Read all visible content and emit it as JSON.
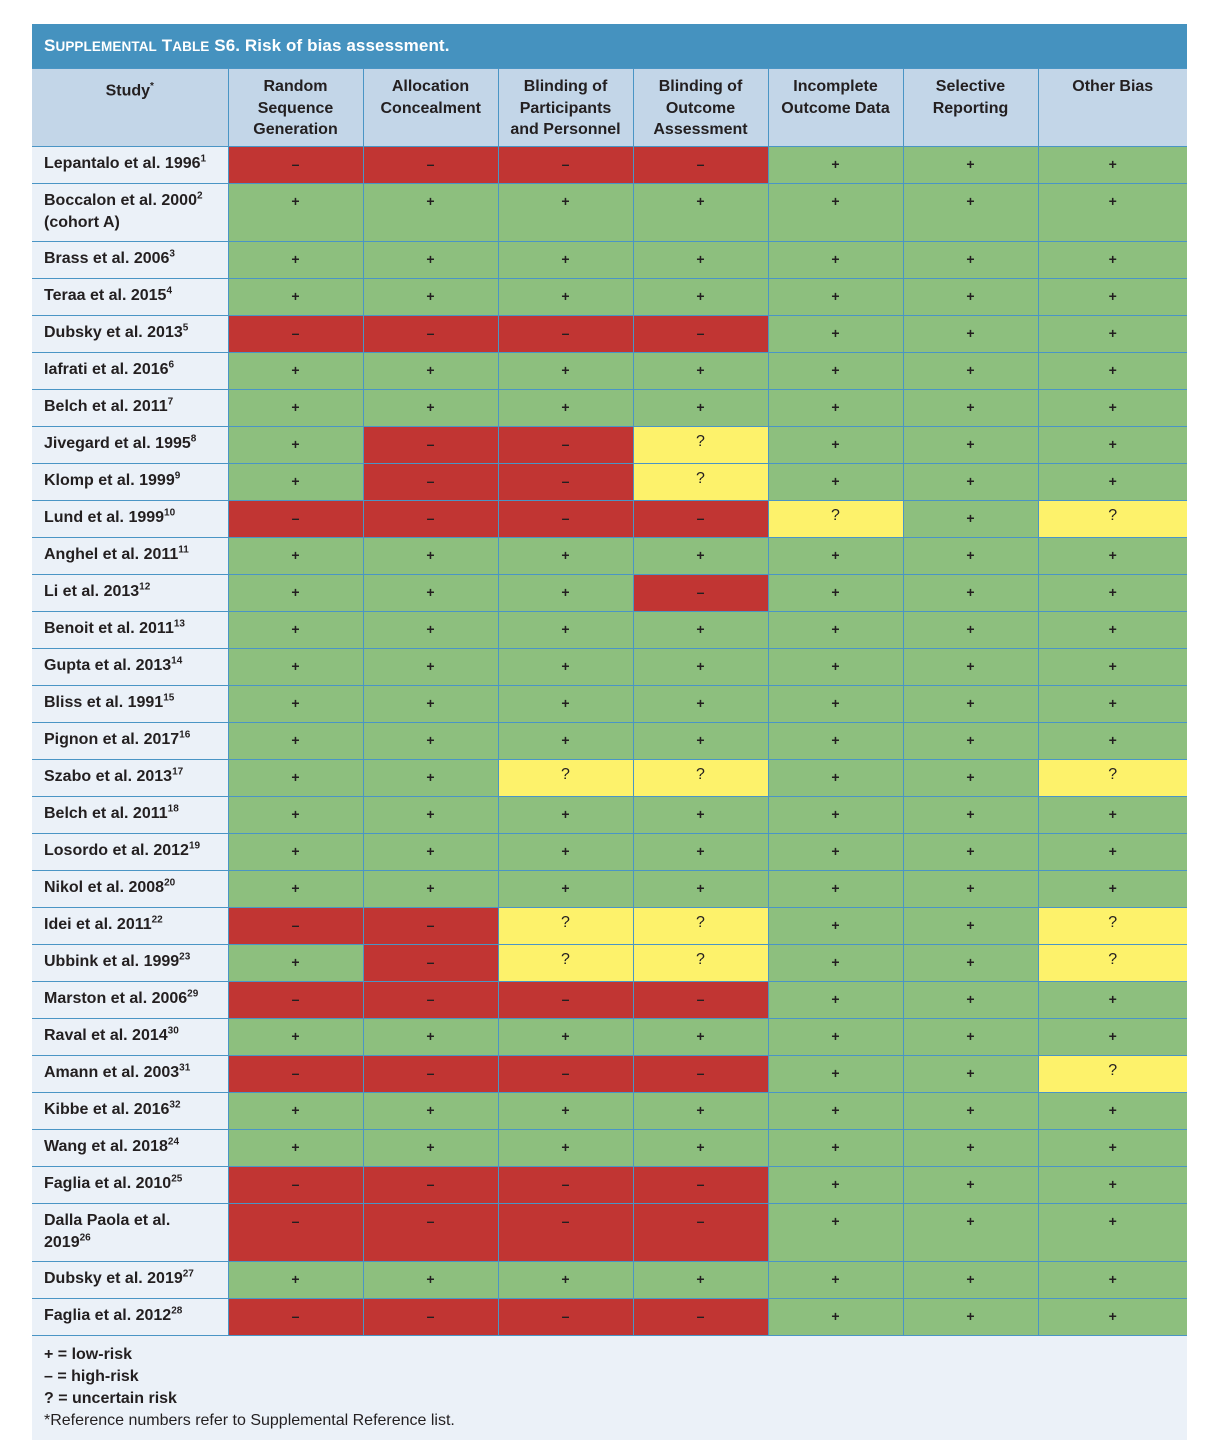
{
  "title": {
    "label_smallcaps": "Supplemental Table S6.",
    "text": "Risk of bias assessment."
  },
  "columns": [
    {
      "label": "Study",
      "sup": "*"
    },
    {
      "label": "Random Sequence Generation"
    },
    {
      "label": "Allocation Concealment"
    },
    {
      "label": "Blinding of Participants and Personnel"
    },
    {
      "label": "Blinding of Outcome Assessment"
    },
    {
      "label": "Incomplete Outcome Data"
    },
    {
      "label": "Selective Reporting"
    },
    {
      "label": "Other Bias"
    }
  ],
  "symbols": {
    "low": "+",
    "high": "–",
    "unc": "?"
  },
  "colors": {
    "low": "#8dbf7e",
    "high": "#c13533",
    "uncertain": "#fdf26b",
    "title_bar": "#4592bf",
    "header_bg": "#c3d6e8",
    "study_bg": "#ebf1f8",
    "grid": "#4a95c5"
  },
  "rows": [
    {
      "study": "Lepantalo et al. 1996",
      "ref": "1",
      "r": [
        "high",
        "high",
        "high",
        "high",
        "low",
        "low",
        "low"
      ]
    },
    {
      "study": "Boccalon et al. 2000",
      "ref": "2",
      "study2": "(cohort A)",
      "r": [
        "low",
        "low",
        "low",
        "low",
        "low",
        "low",
        "low"
      ]
    },
    {
      "study": "Brass et al. 2006",
      "ref": "3",
      "r": [
        "low",
        "low",
        "low",
        "low",
        "low",
        "low",
        "low"
      ]
    },
    {
      "study": "Teraa et al. 2015",
      "ref": "4",
      "r": [
        "low",
        "low",
        "low",
        "low",
        "low",
        "low",
        "low"
      ]
    },
    {
      "study": "Dubsky et al. 2013",
      "ref": "5",
      "r": [
        "high",
        "high",
        "high",
        "high",
        "low",
        "low",
        "low"
      ]
    },
    {
      "study": "Iafrati et al. 2016",
      "ref": "6",
      "r": [
        "low",
        "low",
        "low",
        "low",
        "low",
        "low",
        "low"
      ]
    },
    {
      "study": "Belch et al. 2011",
      "ref": "7",
      "r": [
        "low",
        "low",
        "low",
        "low",
        "low",
        "low",
        "low"
      ]
    },
    {
      "study": "Jivegard et al. 1995",
      "ref": "8",
      "r": [
        "low",
        "high",
        "high",
        "unc",
        "low",
        "low",
        "low"
      ]
    },
    {
      "study": "Klomp et al. 1999",
      "ref": "9",
      "r": [
        "low",
        "high",
        "high",
        "unc",
        "low",
        "low",
        "low"
      ]
    },
    {
      "study": "Lund et al. 1999",
      "ref": "10",
      "r": [
        "high",
        "high",
        "high",
        "high",
        "unc",
        "low",
        "unc"
      ]
    },
    {
      "study": "Anghel et al. 2011",
      "ref": "11",
      "r": [
        "low",
        "low",
        "low",
        "low",
        "low",
        "low",
        "low"
      ]
    },
    {
      "study": "Li et al. 2013",
      "ref": "12",
      "r": [
        "low",
        "low",
        "low",
        "high",
        "low",
        "low",
        "low"
      ]
    },
    {
      "study": "Benoit et al. 2011",
      "ref": "13",
      "r": [
        "low",
        "low",
        "low",
        "low",
        "low",
        "low",
        "low"
      ]
    },
    {
      "study": "Gupta et al. 2013",
      "ref": "14",
      "r": [
        "low",
        "low",
        "low",
        "low",
        "low",
        "low",
        "low"
      ]
    },
    {
      "study": "Bliss et al. 1991",
      "ref": "15",
      "r": [
        "low",
        "low",
        "low",
        "low",
        "low",
        "low",
        "low"
      ]
    },
    {
      "study": "Pignon et al. 2017",
      "ref": "16",
      "r": [
        "low",
        "low",
        "low",
        "low",
        "low",
        "low",
        "low"
      ]
    },
    {
      "study": "Szabo et al. 2013",
      "ref": "17",
      "r": [
        "low",
        "low",
        "unc",
        "unc",
        "low",
        "low",
        "unc"
      ]
    },
    {
      "study": "Belch et al. 2011",
      "ref": "18",
      "r": [
        "low",
        "low",
        "low",
        "low",
        "low",
        "low",
        "low"
      ]
    },
    {
      "study": "Losordo et al. 2012",
      "ref": "19",
      "r": [
        "low",
        "low",
        "low",
        "low",
        "low",
        "low",
        "low"
      ]
    },
    {
      "study": "Nikol et al. 2008",
      "ref": "20",
      "r": [
        "low",
        "low",
        "low",
        "low",
        "low",
        "low",
        "low"
      ]
    },
    {
      "study": "Idei et al. 2011",
      "ref": "22",
      "r": [
        "high",
        "high",
        "unc",
        "unc",
        "low",
        "low",
        "unc"
      ]
    },
    {
      "study": "Ubbink et al. 1999",
      "ref": "23",
      "r": [
        "low",
        "high",
        "unc",
        "unc",
        "low",
        "low",
        "unc"
      ]
    },
    {
      "study": "Marston et al. 2006",
      "ref": "29",
      "r": [
        "high",
        "high",
        "high",
        "high",
        "low",
        "low",
        "low"
      ]
    },
    {
      "study": "Raval et al. 2014",
      "ref": "30",
      "r": [
        "low",
        "low",
        "low",
        "low",
        "low",
        "low",
        "low"
      ]
    },
    {
      "study": "Amann et al. 2003",
      "ref": "31",
      "r": [
        "high",
        "high",
        "high",
        "high",
        "low",
        "low",
        "unc"
      ]
    },
    {
      "study": "Kibbe et al. 2016",
      "ref": "32",
      "r": [
        "low",
        "low",
        "low",
        "low",
        "low",
        "low",
        "low"
      ]
    },
    {
      "study": "Wang et al. 2018",
      "ref": "24",
      "r": [
        "low",
        "low",
        "low",
        "low",
        "low",
        "low",
        "low"
      ]
    },
    {
      "study": "Faglia et al. 2010",
      "ref": "25",
      "r": [
        "high",
        "high",
        "high",
        "high",
        "low",
        "low",
        "low"
      ]
    },
    {
      "study": "Dalla Paola et al.",
      "study2": "2019",
      "ref": "26",
      "ref_on_line2": true,
      "r": [
        "high",
        "high",
        "high",
        "high",
        "low",
        "low",
        "low"
      ]
    },
    {
      "study": "Dubsky et al. 2019",
      "ref": "27",
      "r": [
        "low",
        "low",
        "low",
        "low",
        "low",
        "low",
        "low"
      ]
    },
    {
      "study": "Faglia et al. 2012",
      "ref": "28",
      "r": [
        "high",
        "high",
        "high",
        "high",
        "low",
        "low",
        "low"
      ]
    }
  ],
  "footer": {
    "legend": [
      "+ = low-risk",
      "–  = high-risk",
      "? = uncertain risk"
    ],
    "note": "*Reference numbers refer to Supplemental Reference list."
  }
}
